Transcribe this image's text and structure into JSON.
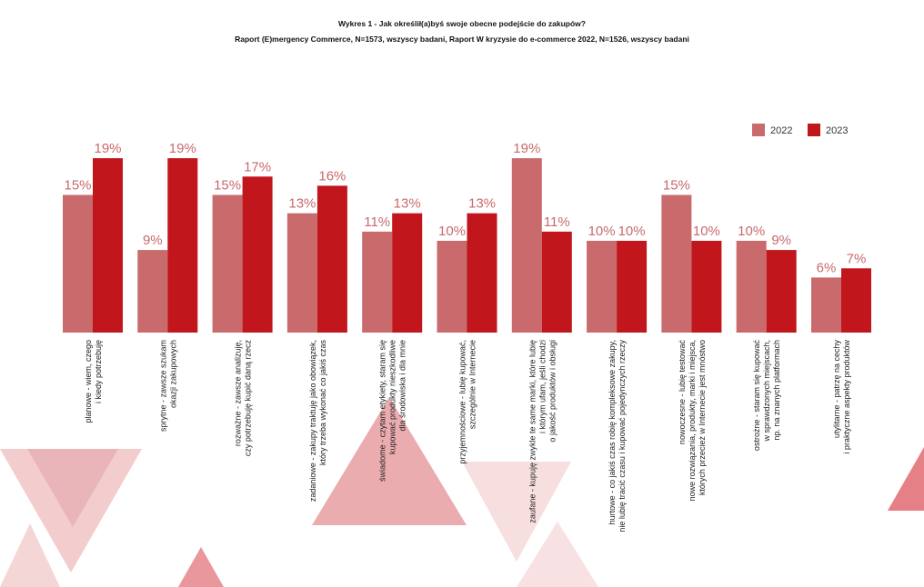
{
  "title": "Wykres 1 - Jak określił(a)byś swoje obecne podejście do zakupów?",
  "subtitle": "Raport (E)mergency Commerce, N=1573, wszyscy badani, Raport W kryzysie do e-commerce 2022, N=1526, wszyscy badani",
  "colors": {
    "s2022": "#c96a6c",
    "s2023": "#c0161c",
    "value_label": "#c96a6c",
    "decor": "#e9a3a6"
  },
  "chart_data": {
    "type": "bar",
    "title": "Wykres 1 - Jak określił(a)byś swoje obecne podejście do zakupów?",
    "subtitle": "Raport (E)mergency Commerce, N=1573, wszyscy badani, Raport W kryzysie do e-commerce 2022, N=1526, wszyscy badani",
    "legend_position": "top-right",
    "grid": false,
    "ylim": [
      0,
      20
    ],
    "value_suffix": "%",
    "categories": [
      [
        "planowe - wiem, czego",
        "i kiedy potrzebuję"
      ],
      [
        "sprytne - zawsze szukam",
        "okazji zakupowych"
      ],
      [
        "rozważne - zawsze analizuję,",
        "czy potrzebuję kupić daną rzecz"
      ],
      [
        "zadaniowe - zakupy traktuję jako obowiązek,",
        "który trzeba wykonać co jakiś czas"
      ],
      [
        "świadome - czytam etykiety, staram się",
        "kupować produkty nieszkodliwe",
        "dla środowiska i dla mnie"
      ],
      [
        "przyjemnościowe - lubię kupować,",
        "szczególnie w Internecie"
      ],
      [
        "zaufane - kupuję zwykle te same marki, które lubię",
        "i którym ufam, jeśli chodzi",
        "o jakość produktów i obsługi"
      ],
      [
        "hurtowe - co jakiś czas robię kompleksowe zakupy,",
        "nie lubię tracić czasu i kupować pojedynczych rzeczy"
      ],
      [
        "nowoczesne - lubię testować",
        "nowe rozwiązania, produkty, marki i miejsca,",
        "których przecież w Internecie jest mnóstwo"
      ],
      [
        "ostrożne - staram się kupować",
        "w sprawdzonych miejscach,",
        "np. na znanych platformach"
      ],
      [
        "utylitarne - patrzę na cechy",
        "i praktyczne aspekty produktów"
      ]
    ],
    "series": [
      {
        "name": "2022",
        "values": [
          15,
          9,
          15,
          13,
          11,
          10,
          19,
          10,
          15,
          10,
          6
        ]
      },
      {
        "name": "2023",
        "values": [
          19,
          19,
          17,
          16,
          13,
          13,
          11,
          10,
          10,
          9,
          7
        ]
      }
    ]
  }
}
